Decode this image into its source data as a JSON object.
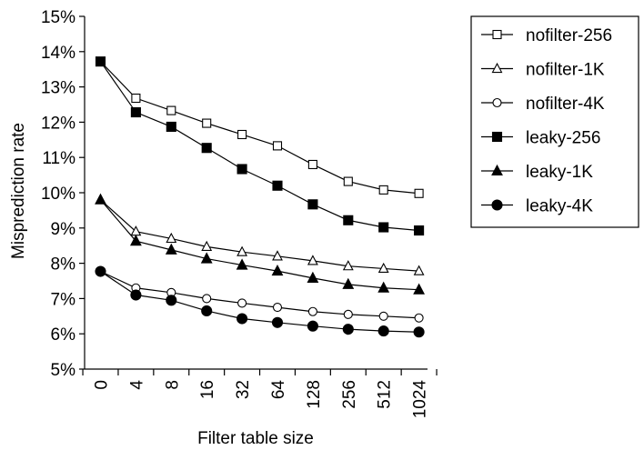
{
  "chart_data": {
    "type": "line",
    "title": "",
    "xlabel": "Filter table size",
    "ylabel": "Misprediction rate",
    "categories": [
      "0",
      "4",
      "8",
      "16",
      "32",
      "64",
      "128",
      "256",
      "512",
      "1024"
    ],
    "y_ticks": [
      "5%",
      "6%",
      "7%",
      "8%",
      "9%",
      "10%",
      "11%",
      "12%",
      "13%",
      "14%",
      "15%"
    ],
    "ylim": [
      5,
      15
    ],
    "legend_position": "top-right",
    "grid": false,
    "series": [
      {
        "name": "nofilter-256",
        "marker": "square-open",
        "color": "#000000",
        "values": [
          13.72,
          12.68,
          12.33,
          11.97,
          11.65,
          11.33,
          10.8,
          10.32,
          10.08,
          9.98
        ]
      },
      {
        "name": "nofilter-1K",
        "marker": "triangle-open",
        "color": "#000000",
        "values": [
          9.8,
          8.9,
          8.7,
          8.47,
          8.32,
          8.2,
          8.07,
          7.92,
          7.85,
          7.78
        ]
      },
      {
        "name": "nofilter-4K",
        "marker": "circle-open",
        "color": "#000000",
        "values": [
          7.77,
          7.3,
          7.17,
          7.0,
          6.87,
          6.75,
          6.63,
          6.55,
          6.5,
          6.45
        ]
      },
      {
        "name": "leaky-256",
        "marker": "square-filled",
        "color": "#000000",
        "values": [
          13.72,
          12.28,
          11.87,
          11.27,
          10.67,
          10.2,
          9.67,
          9.22,
          9.02,
          8.93
        ]
      },
      {
        "name": "leaky-1K",
        "marker": "triangle-filled",
        "color": "#000000",
        "values": [
          9.8,
          8.63,
          8.38,
          8.13,
          7.95,
          7.78,
          7.58,
          7.4,
          7.3,
          7.25
        ]
      },
      {
        "name": "leaky-4K",
        "marker": "circle-filled",
        "color": "#000000",
        "values": [
          7.77,
          7.1,
          6.95,
          6.65,
          6.43,
          6.32,
          6.22,
          6.13,
          6.08,
          6.05
        ]
      }
    ]
  }
}
